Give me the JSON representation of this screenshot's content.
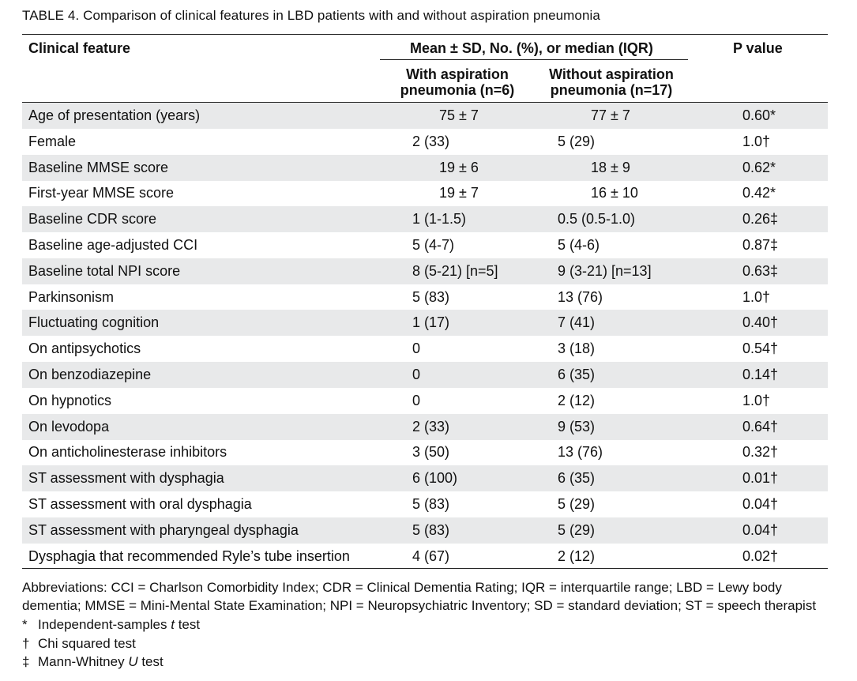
{
  "caption": "TABLE 4.  Comparison of clinical features in LBD patients with and without aspiration pneumonia",
  "header": {
    "feature": "Clinical feature",
    "stats": "Mean ± SD, No. (%), or median (IQR)",
    "pvalue": "P value",
    "with_line1": "With aspiration",
    "with_line2": "pneumonia (n=6)",
    "without_line1": "Without aspiration",
    "without_line2": "pneumonia (n=17)"
  },
  "rows": [
    {
      "feature": "Age of presentation (years)",
      "with": "75 ± 7",
      "without": "77 ± 7",
      "p": "0.60*"
    },
    {
      "feature": "Female",
      "with": "2 (33)",
      "without": "5 (29)",
      "p": "1.0†"
    },
    {
      "feature": "Baseline MMSE score",
      "with": "19 ± 6",
      "without": "18 ± 9",
      "p": "0.62*"
    },
    {
      "feature": "First-year MMSE score",
      "with": "19 ± 7",
      "without": "16 ± 10",
      "p": "0.42*"
    },
    {
      "feature": "Baseline CDR score",
      "with": "1 (1-1.5)",
      "without": "0.5 (0.5-1.0)",
      "p": "0.26‡"
    },
    {
      "feature": "Baseline age-adjusted CCI",
      "with": "5 (4-7)",
      "without": "5 (4-6)",
      "p": "0.87‡"
    },
    {
      "feature": "Baseline total NPI score",
      "with": "8 (5-21) [n=5]",
      "without": "9 (3-21) [n=13]",
      "p": "0.63‡"
    },
    {
      "feature": "Parkinsonism",
      "with": "5 (83)",
      "without": "13 (76)",
      "p": "1.0†"
    },
    {
      "feature": "Fluctuating cognition",
      "with": "1 (17)",
      "without": "7 (41)",
      "p": "0.40†"
    },
    {
      "feature": "On antipsychotics",
      "with": "0",
      "without": "3 (18)",
      "p": "0.54†"
    },
    {
      "feature": "On benzodiazepine",
      "with": "0",
      "without": "6 (35)",
      "p": "0.14†"
    },
    {
      "feature": "On hypnotics",
      "with": "0",
      "without": "2 (12)",
      "p": "1.0†"
    },
    {
      "feature": "On levodopa",
      "with": "2 (33)",
      "without": "9 (53)",
      "p": "0.64†"
    },
    {
      "feature": "On anticholinesterase inhibitors",
      "with": "3 (50)",
      "without": "13 (76)",
      "p": "0.32†"
    },
    {
      "feature": "ST assessment with dysphagia",
      "with": "6 (100)",
      "without": "6 (35)",
      "p": "0.01†"
    },
    {
      "feature": "ST assessment with oral dysphagia",
      "with": "5 (83)",
      "without": "5 (29)",
      "p": "0.04†"
    },
    {
      "feature": "ST assessment with pharyngeal dysphagia",
      "with": "5 (83)",
      "without": "5 (29)",
      "p": "0.04†"
    },
    {
      "feature": "Dysphagia that recommended Ryle’s tube insertion",
      "with": "4 (67)",
      "without": "2 (12)",
      "p": "0.02†"
    }
  ],
  "footer": {
    "abbrev_line1": "Abbreviations: CCI = Charlson Comorbidity Index; CDR = Clinical Dementia Rating; IQR = interquartile range; LBD = Lewy body",
    "abbrev_line2": "dementia; MMSE = Mini-Mental State Examination; NPI = Neuropsychiatric Inventory; SD = standard deviation; ST = speech therapist",
    "notes": [
      {
        "symbol": "*",
        "pre": "Independent-samples ",
        "italic": "t",
        "post": " test"
      },
      {
        "symbol": "†",
        "pre": "Chi squared test",
        "italic": "",
        "post": ""
      },
      {
        "symbol": "‡",
        "pre": "Mann-Whitney ",
        "italic": "U",
        "post": " test"
      }
    ]
  }
}
